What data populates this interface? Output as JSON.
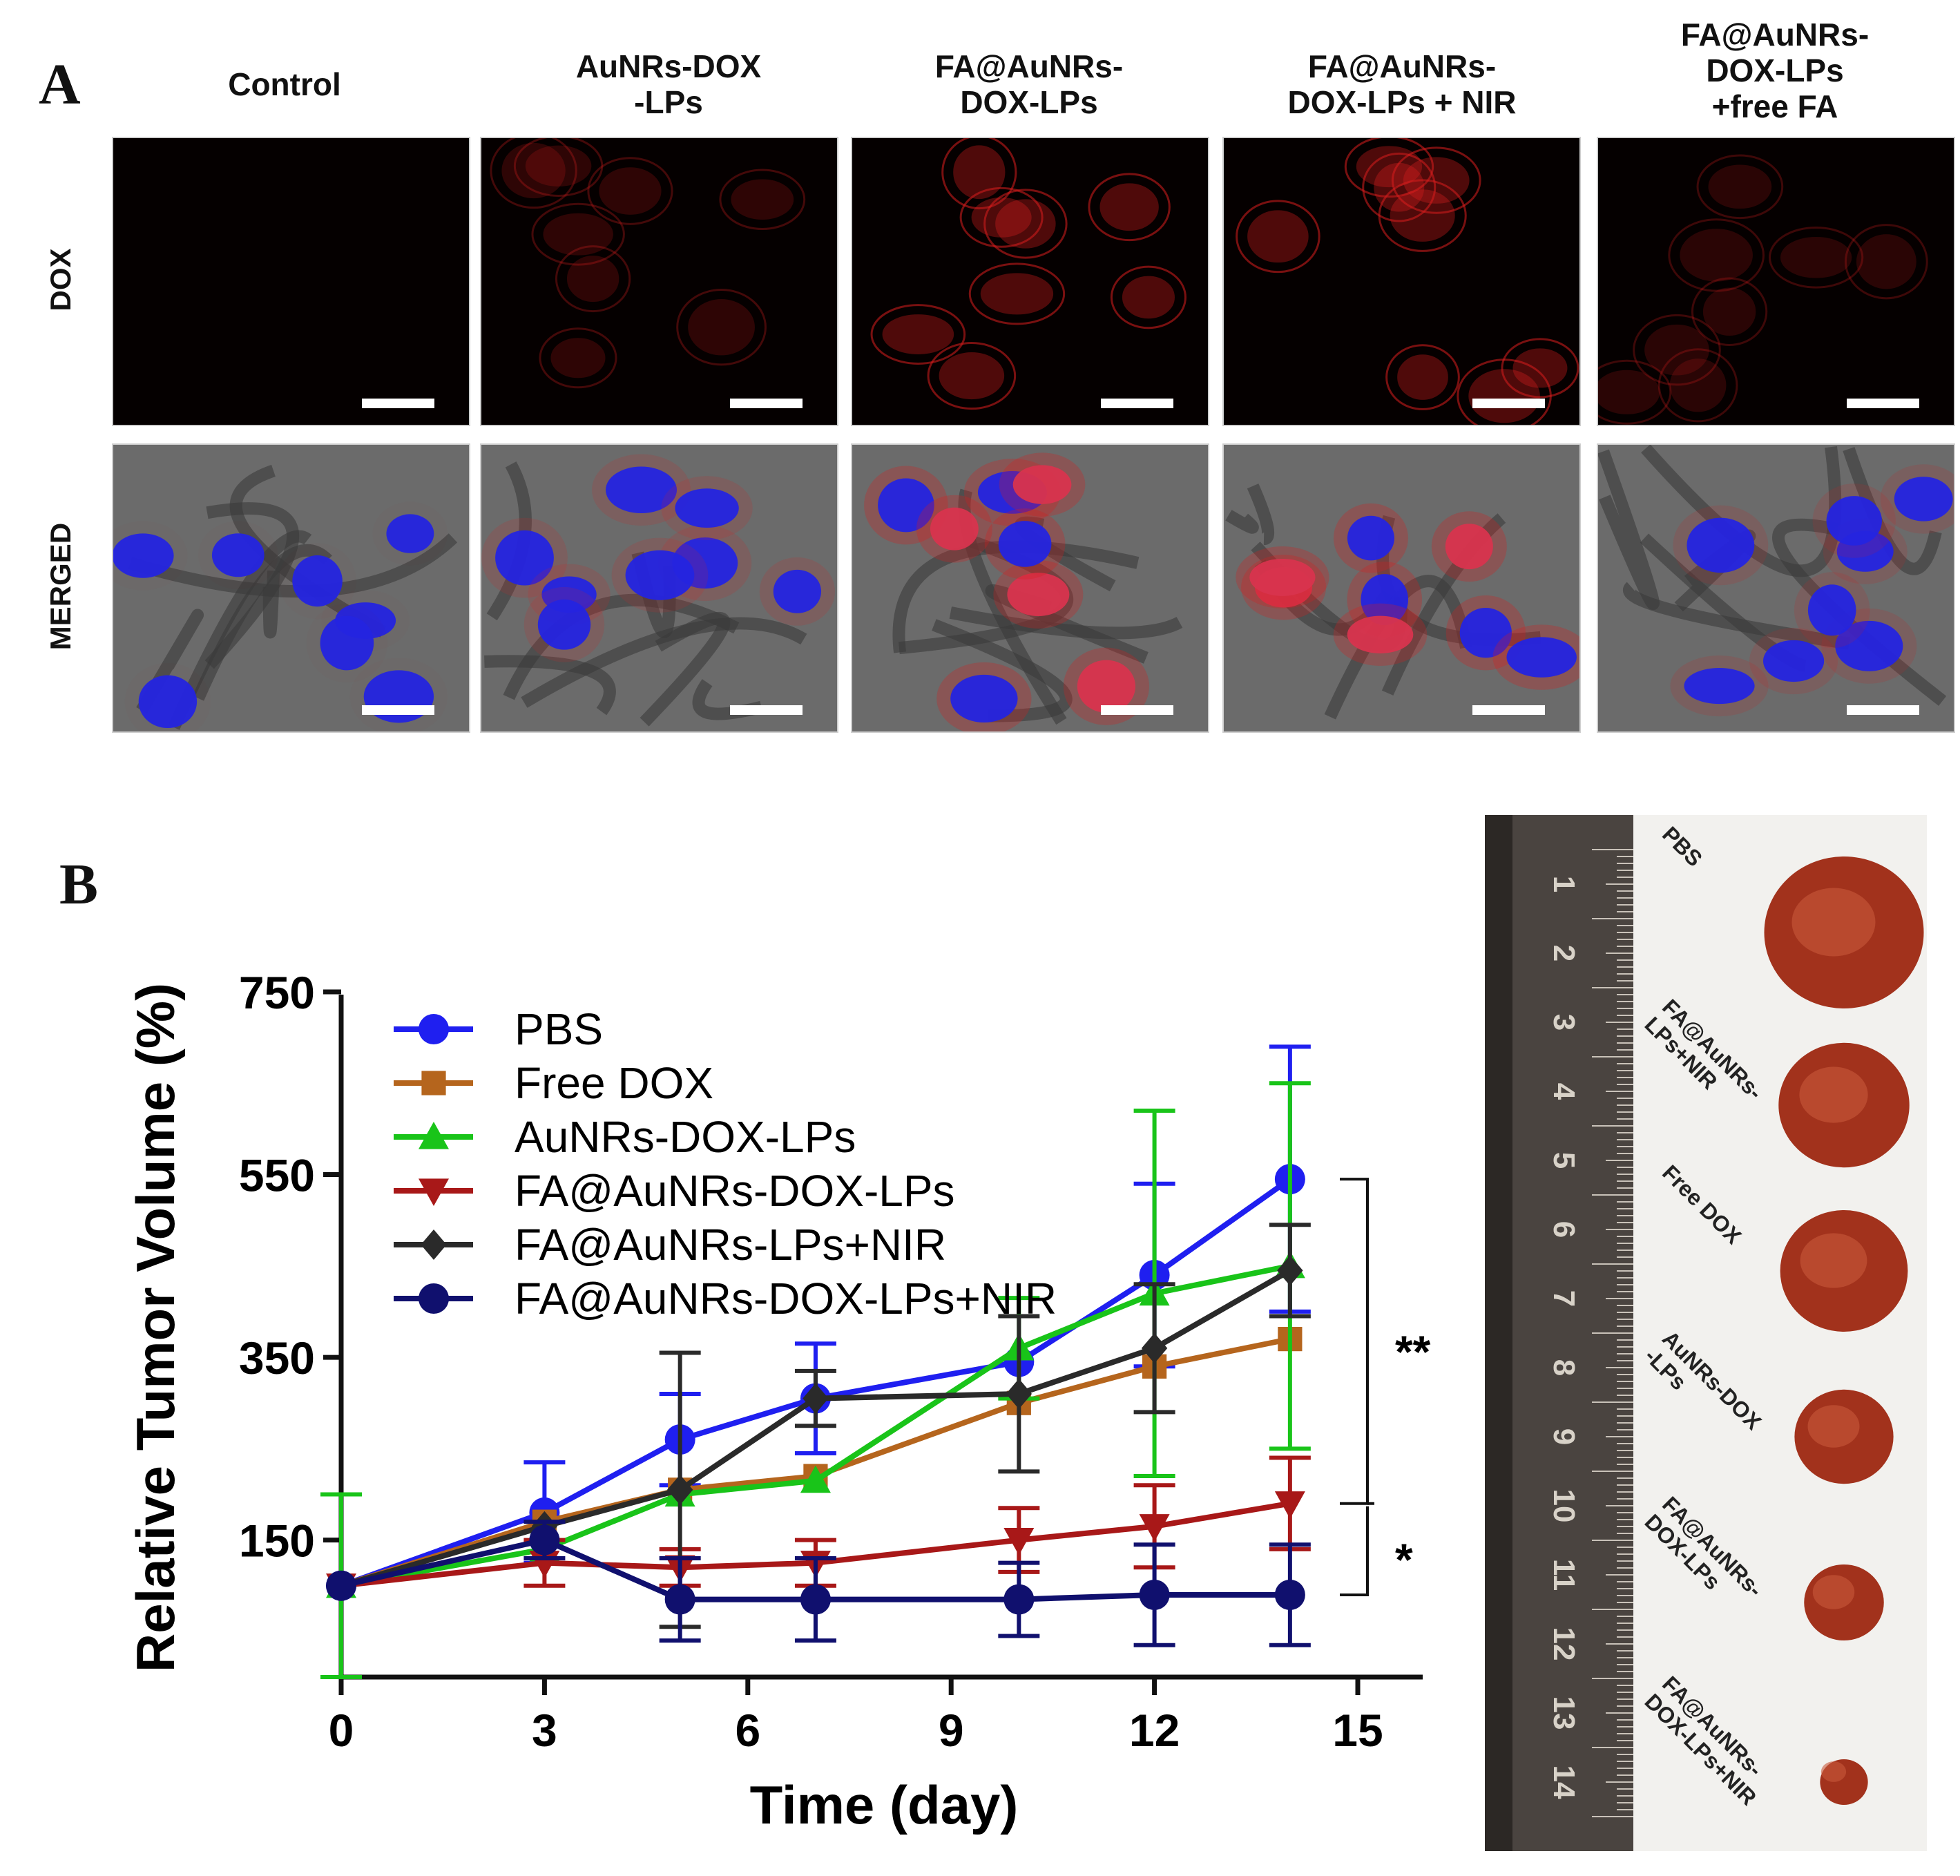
{
  "panel_a": {
    "letter": "A",
    "columns": [
      "Control",
      "AuNRs-DOX\n-LPs",
      "FA@AuNRs-\nDOX-LPs",
      "FA@AuNRs-\nDOX-LPs + NIR",
      "FA@AuNRs-\nDOX-LPs\n+free FA"
    ],
    "rows": [
      "DOX",
      "MERGED"
    ],
    "colors": {
      "dox": "#d81e1e",
      "nucleus": "#2424e0",
      "bright_field": "#6b6b6b"
    }
  },
  "panel_b": {
    "letter": "B",
    "photo": {
      "ruler_numbers": [
        "1",
        "2",
        "3",
        "4",
        "5",
        "6",
        "7",
        "8",
        "9",
        "10",
        "11",
        "12",
        "13",
        "14"
      ],
      "tumor_labels": [
        "PBS",
        "FA@AuNRs-\nLPs+NIR",
        "Free DOX",
        "AuNRs-DOX\n-LPs",
        "FA@AuNRs-\nDOX-LPs",
        "FA@AuNRs-\nDOX-LPs+NIR"
      ],
      "tumor_sizes": [
        1.0,
        0.82,
        0.8,
        0.62,
        0.5,
        0.3
      ]
    }
  },
  "chart_data": {
    "type": "line",
    "title": "",
    "xlabel": "Time (day)",
    "ylabel": "Relative Tumor Volume (%)",
    "xlim": [
      0,
      15
    ],
    "ylim": [
      0,
      750
    ],
    "xticks": [
      0,
      3,
      6,
      9,
      12,
      15
    ],
    "yticks": [
      150,
      350,
      550,
      750
    ],
    "grid": false,
    "legend_position": "top-left",
    "x": [
      0,
      3,
      5,
      7,
      10,
      12,
      14
    ],
    "series": [
      {
        "name": "PBS",
        "marker": "circle",
        "color": "#1f1ff0",
        "values": [
          100,
          180,
          260,
          305,
          345,
          440,
          545
        ],
        "errors": [
          0,
          55,
          50,
          60,
          0,
          100,
          145
        ]
      },
      {
        "name": "Free DOX",
        "marker": "square",
        "color": "#b5651d",
        "values": [
          100,
          170,
          205,
          220,
          300,
          340,
          370
        ],
        "errors": [
          0,
          0,
          0,
          0,
          0,
          0,
          0
        ]
      },
      {
        "name": "AuNRs-DOX-LPs",
        "marker": "triangle-up",
        "color": "#19c419",
        "values": [
          100,
          140,
          200,
          215,
          360,
          420,
          450
        ],
        "errors": [
          100,
          0,
          0,
          0,
          55,
          200,
          200
        ]
      },
      {
        "name": "FA@AuNRs-DOX-LPs",
        "marker": "triangle-down",
        "color": "#a81818",
        "values": [
          100,
          125,
          120,
          125,
          150,
          165,
          190
        ],
        "errors": [
          0,
          25,
          20,
          25,
          35,
          45,
          50
        ]
      },
      {
        "name": "FA@AuNRs-LPs+NIR",
        "marker": "diamond",
        "color": "#2a2a2a",
        "values": [
          100,
          165,
          205,
          305,
          310,
          360,
          445
        ],
        "errors": [
          0,
          0,
          150,
          30,
          85,
          70,
          50
        ]
      },
      {
        "name": "FA@AuNRs-DOX-LPs+NIR",
        "marker": "circle",
        "color": "#10106e",
        "values": [
          100,
          150,
          85,
          85,
          85,
          90,
          90
        ],
        "errors": [
          0,
          20,
          45,
          45,
          40,
          55,
          55
        ]
      }
    ],
    "significance": [
      "**",
      "*"
    ]
  }
}
